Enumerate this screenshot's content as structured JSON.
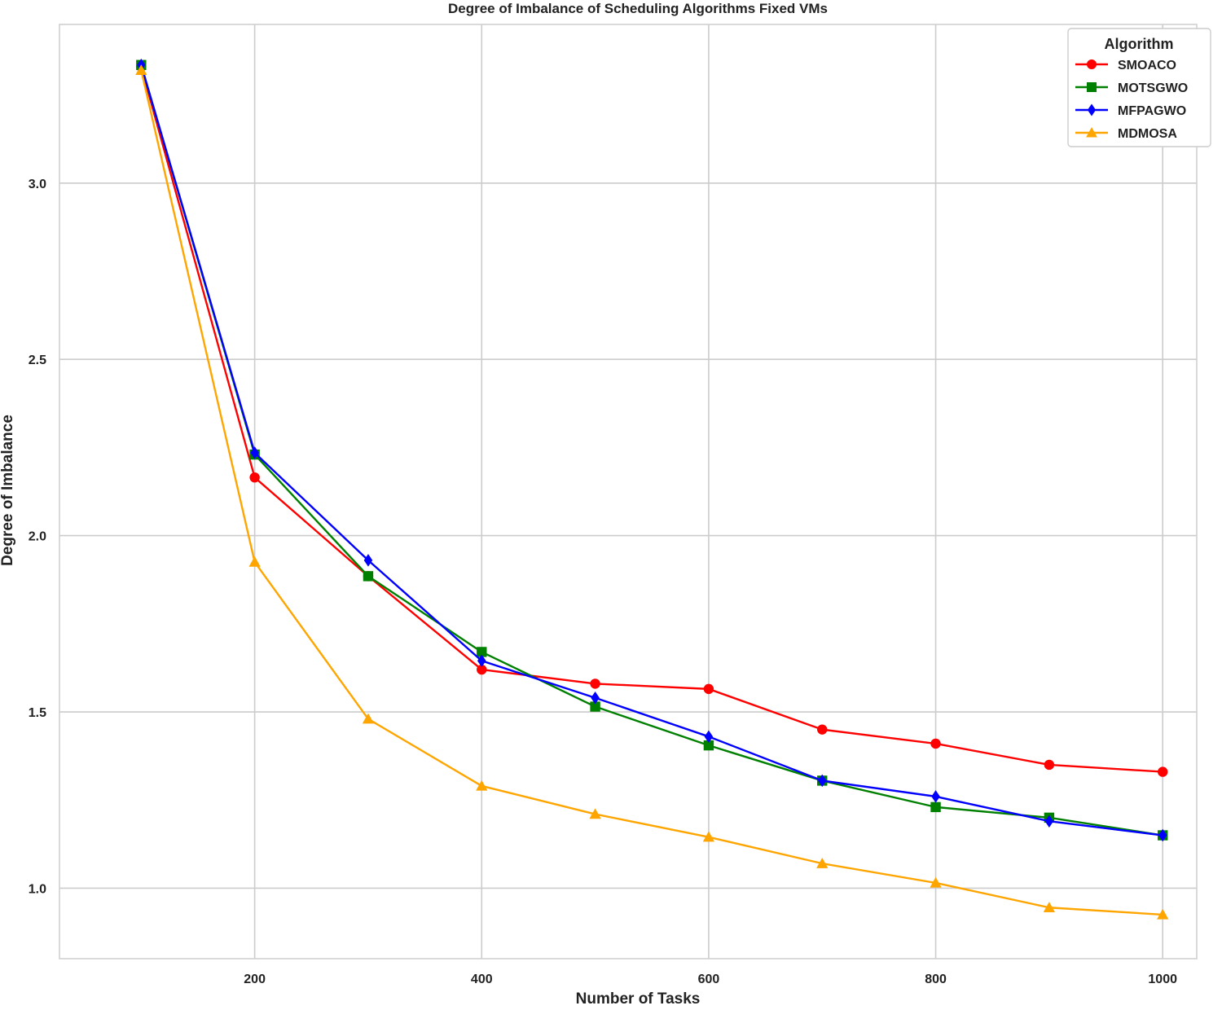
{
  "chart_data": {
    "type": "line",
    "title": "Degree of Imbalance of Scheduling Algorithms Fixed VMs",
    "xlabel": "Number of Tasks",
    "ylabel": "Degree of Imbalance",
    "x": [
      100,
      200,
      300,
      400,
      500,
      600,
      700,
      800,
      900,
      1000
    ],
    "xlim": [
      28,
      1030
    ],
    "ylim": [
      0.8,
      3.45
    ],
    "xticks": [
      200,
      400,
      600,
      800,
      1000
    ],
    "yticks": [
      1.0,
      1.5,
      2.0,
      2.5,
      3.0
    ],
    "xtick_labels": [
      "200",
      "400",
      "600",
      "800",
      "1000"
    ],
    "ytick_labels": [
      "1.0",
      "1.5",
      "2.0",
      "2.5",
      "3.0"
    ],
    "grid": true,
    "legend": {
      "title": "Algorithm",
      "placement": "top-right"
    },
    "series": [
      {
        "name": "SMOACO",
        "color": "#ff0000",
        "marker": "circle",
        "values": [
          3.33,
          2.165,
          1.885,
          1.62,
          1.58,
          1.565,
          1.45,
          1.41,
          1.35,
          1.33
        ]
      },
      {
        "name": "MOTSGWO",
        "color": "#008000",
        "marker": "square",
        "values": [
          3.335,
          2.23,
          1.885,
          1.67,
          1.515,
          1.405,
          1.305,
          1.23,
          1.2,
          1.15
        ]
      },
      {
        "name": "MFPAGWO",
        "color": "#0000ff",
        "marker": "diamond",
        "values": [
          3.335,
          2.235,
          1.93,
          1.645,
          1.54,
          1.43,
          1.305,
          1.26,
          1.19,
          1.15
        ]
      },
      {
        "name": "MDMOSA",
        "color": "#ffa500",
        "marker": "triangle",
        "values": [
          3.32,
          1.925,
          1.48,
          1.29,
          1.21,
          1.145,
          1.07,
          1.015,
          0.945,
          0.925
        ]
      }
    ]
  }
}
